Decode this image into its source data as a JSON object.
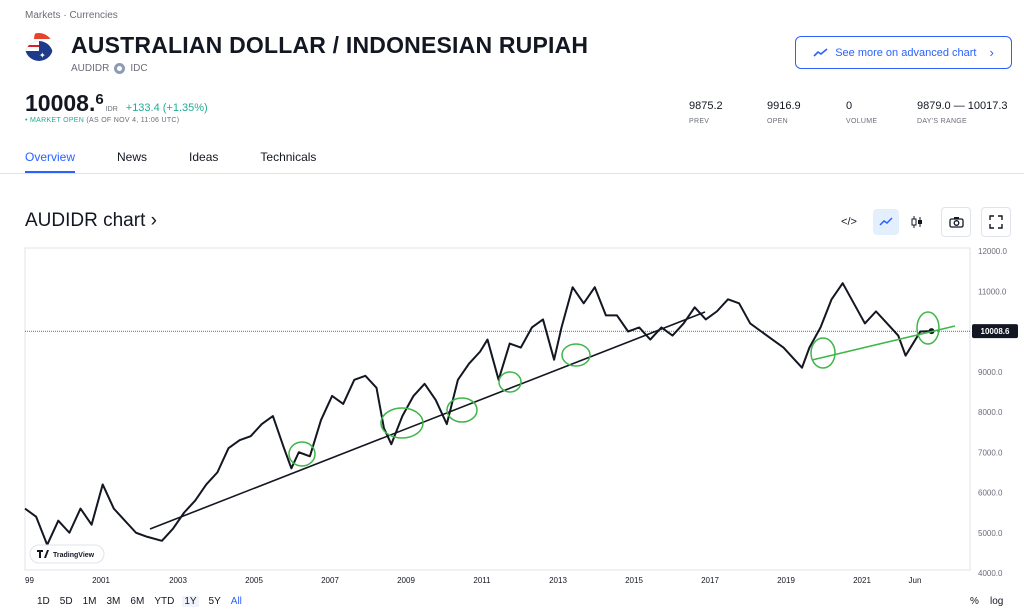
{
  "breadcrumb": "Markets · Currencies",
  "header": {
    "title": "AUSTRALIAN DOLLAR / INDONESIAN RUPIAH",
    "symbol": "AUDIDR",
    "exchange": "IDC",
    "advanced_btn": "See more on advanced chart"
  },
  "quote": {
    "price_main": "10008.",
    "price_sup": "6",
    "currency": "IDR",
    "change": "+133.4 (+1.35%)",
    "status_open": "• MARKET OPEN",
    "status_time": "(AS OF NOV 4, 11:06 UTC)",
    "stats": [
      {
        "value": "9875.2",
        "label": "PREV"
      },
      {
        "value": "9916.9",
        "label": "OPEN"
      },
      {
        "value": "0",
        "label": "VOLUME"
      },
      {
        "value": "9879.0 — 10017.3",
        "label": "DAY'S RANGE"
      }
    ]
  },
  "tabs": [
    "Overview",
    "News",
    "Ideas",
    "Technicals"
  ],
  "chart_title": "AUDIDR chart ›",
  "toolbar": {
    "embed": "</>"
  },
  "chart_data": {
    "type": "line",
    "x_ticks": [
      "99",
      "2001",
      "2003",
      "2005",
      "2007",
      "2009",
      "2011",
      "2013",
      "2015",
      "2017",
      "2019",
      "2021",
      "Jun"
    ],
    "y_ticks": [
      "12000.0",
      "11000.0",
      "10000.0",
      "9000.0",
      "8000.0",
      "7000.0",
      "6000.0",
      "5000.0",
      "4000.0"
    ],
    "ylim": [
      4000,
      12000
    ],
    "last_value_label": "10008.6",
    "series": [
      {
        "x": [
          1999.0,
          1999.3,
          1999.6,
          1999.9,
          2000.2,
          2000.5,
          2000.8,
          2001.1,
          2001.4,
          2001.7,
          2002.0,
          2002.3,
          2002.7,
          2003.0,
          2003.3,
          2003.6,
          2003.9,
          2004.2,
          2004.5,
          2004.8,
          2005.1,
          2005.4,
          2005.7,
          2006.0,
          2006.2,
          2006.4,
          2006.7,
          2007.0,
          2007.3,
          2007.6,
          2007.9,
          2008.2,
          2008.5,
          2008.7,
          2008.9,
          2009.2,
          2009.5,
          2009.8,
          2010.1,
          2010.4,
          2010.7,
          2011.0,
          2011.3,
          2011.5,
          2011.8,
          2012.1,
          2012.4,
          2012.7,
          2013.0,
          2013.3,
          2013.5,
          2013.8,
          2014.1,
          2014.4,
          2014.7,
          2015.0,
          2015.3,
          2015.6,
          2015.9,
          2016.2,
          2016.5,
          2016.8,
          2017.1,
          2017.4,
          2017.7,
          2018.0,
          2018.3,
          2018.6,
          2018.9,
          2019.2,
          2019.5,
          2019.8,
          2020.0,
          2020.2,
          2020.5,
          2020.8,
          2021.1,
          2021.4,
          2021.7,
          2022.0,
          2022.3,
          2022.6,
          2022.8,
          2023.0,
          2023.2,
          2023.5
        ],
        "values": [
          5600,
          5400,
          4700,
          5300,
          5000,
          5600,
          5200,
          6200,
          5600,
          5300,
          5000,
          4900,
          4800,
          5100,
          5500,
          5800,
          6200,
          6500,
          7100,
          7300,
          7400,
          7700,
          7900,
          7100,
          6600,
          7000,
          6900,
          7800,
          8400,
          8200,
          8800,
          8900,
          8600,
          7600,
          7200,
          7900,
          8400,
          8700,
          8300,
          7700,
          8800,
          9200,
          9500,
          9800,
          8800,
          9700,
          9600,
          10100,
          10300,
          9300,
          10100,
          11100,
          10700,
          11100,
          10400,
          10400,
          10000,
          10100,
          9800,
          10100,
          9900,
          10200,
          10600,
          10300,
          10500,
          10800,
          10700,
          10200,
          10000,
          9800,
          9600,
          9300,
          9100,
          9600,
          10100,
          10800,
          11200,
          10700,
          10200,
          10500,
          10200,
          9900,
          9400,
          9700,
          10000,
          10008.6
        ]
      }
    ]
  }
}
